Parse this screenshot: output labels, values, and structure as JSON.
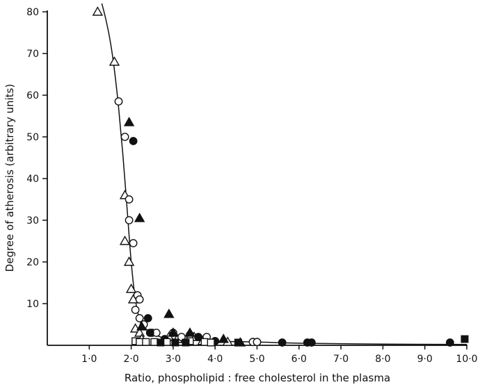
{
  "chart_data": {
    "type": "scatter",
    "title": "",
    "xlabel": "Ratio, phospholipid : free cholesterol in the plasma",
    "ylabel": "Degree of atherosis (arbitrary units)",
    "xlim": [
      0,
      10.0
    ],
    "ylim": [
      0,
      80
    ],
    "x_ticks": [
      1.0,
      2.0,
      3.0,
      4.0,
      5.0,
      6.0,
      7.0,
      8.0,
      9.0,
      10.0
    ],
    "x_tick_labels": [
      "1·0",
      "2·0",
      "3·0",
      "4·0",
      "5·0",
      "6·0",
      "7·0",
      "8·0",
      "9·0",
      "10·0"
    ],
    "y_ticks": [
      10,
      20,
      30,
      40,
      50,
      60,
      70,
      80
    ],
    "y_tick_labels": [
      "10",
      "20",
      "30",
      "40",
      "50",
      "60",
      "70",
      "80"
    ],
    "grid": false,
    "legend": "none",
    "colors": {
      "ink": "#111111",
      "background": "#ffffff"
    },
    "series": [
      {
        "marker": "open-triangle",
        "points": [
          [
            1.2,
            80
          ],
          [
            1.6,
            68
          ],
          [
            1.85,
            36
          ],
          [
            1.85,
            25
          ],
          [
            1.95,
            20
          ],
          [
            2.0,
            13.5
          ],
          [
            2.05,
            11
          ],
          [
            2.1,
            4
          ],
          [
            2.2,
            3
          ],
          [
            2.25,
            1.5
          ],
          [
            2.9,
            2
          ],
          [
            3.1,
            1.5
          ],
          [
            3.5,
            2
          ],
          [
            3.7,
            1
          ],
          [
            4.3,
            0.8
          ]
        ]
      },
      {
        "marker": "open-circle",
        "points": [
          [
            1.7,
            58.5
          ],
          [
            1.85,
            50
          ],
          [
            1.95,
            35
          ],
          [
            1.95,
            30
          ],
          [
            2.05,
            24.5
          ],
          [
            2.15,
            12
          ],
          [
            2.2,
            11
          ],
          [
            2.1,
            8.5
          ],
          [
            2.2,
            6.5
          ],
          [
            2.3,
            5
          ],
          [
            2.5,
            3
          ],
          [
            2.6,
            3
          ],
          [
            3.0,
            3
          ],
          [
            3.2,
            2
          ],
          [
            3.4,
            2.5
          ],
          [
            3.8,
            2
          ],
          [
            4.0,
            1
          ],
          [
            4.9,
            0.8
          ],
          [
            5.0,
            0.8
          ]
        ]
      },
      {
        "marker": "filled-triangle",
        "points": [
          [
            1.95,
            53.5
          ],
          [
            2.2,
            30.5
          ],
          [
            2.9,
            7.5
          ],
          [
            2.25,
            4.5
          ],
          [
            3.0,
            3
          ],
          [
            3.4,
            3
          ],
          [
            4.2,
            1.5
          ],
          [
            4.6,
            0.5
          ]
        ]
      },
      {
        "marker": "filled-circle",
        "points": [
          [
            2.05,
            49
          ],
          [
            2.4,
            6.5
          ],
          [
            2.45,
            3
          ],
          [
            2.8,
            1.5
          ],
          [
            3.6,
            2
          ],
          [
            4.0,
            1
          ],
          [
            5.6,
            0.5
          ],
          [
            6.2,
            0
          ],
          [
            6.3,
            0
          ],
          [
            9.6,
            0
          ]
        ]
      },
      {
        "marker": "open-square",
        "points": [
          [
            2.1,
            1
          ],
          [
            2.2,
            0.8
          ],
          [
            2.35,
            0.8
          ],
          [
            2.55,
            0.8
          ],
          [
            2.85,
            0.8
          ],
          [
            3.4,
            1
          ],
          [
            3.75,
            0.8
          ],
          [
            3.9,
            0.5
          ]
        ]
      },
      {
        "marker": "filled-square",
        "points": [
          [
            2.7,
            0.2
          ],
          [
            3.05,
            0.2
          ],
          [
            3.3,
            0.5
          ],
          [
            4.55,
            0.3
          ],
          [
            9.95,
            1.5
          ]
        ]
      }
    ],
    "fitted_curve": [
      [
        1.3,
        82
      ],
      [
        1.4,
        78
      ],
      [
        1.5,
        73
      ],
      [
        1.6,
        66
      ],
      [
        1.7,
        57
      ],
      [
        1.8,
        46
      ],
      [
        1.9,
        33
      ],
      [
        2.0,
        20
      ],
      [
        2.1,
        11
      ],
      [
        2.2,
        6.5
      ],
      [
        2.4,
        3.5
      ],
      [
        2.7,
        2
      ],
      [
        3.0,
        1.5
      ],
      [
        4.0,
        1.0
      ],
      [
        5.0,
        0.8
      ],
      [
        6.0,
        0.5
      ],
      [
        8.0,
        0.3
      ],
      [
        10.0,
        0.2
      ]
    ]
  }
}
